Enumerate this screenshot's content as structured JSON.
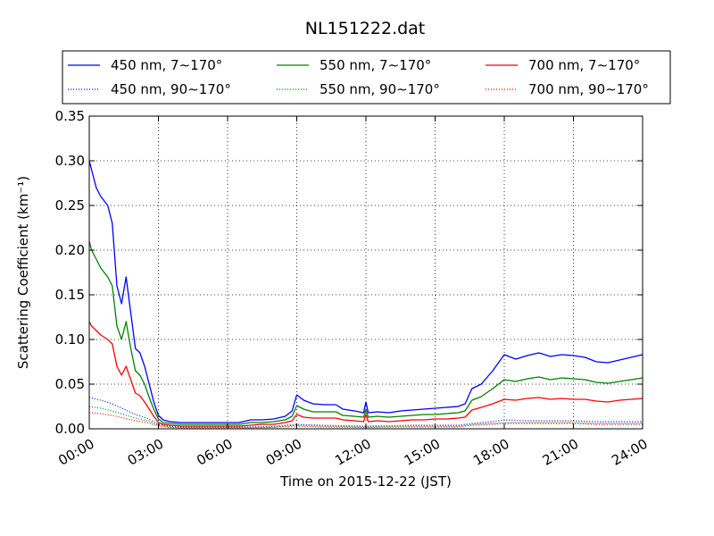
{
  "chart_data": {
    "type": "line",
    "title": "NL151222.dat",
    "xlabel": "Time on 2015-12-22 (JST)",
    "ylabel": "Scattering Coefficient (km⁻¹)",
    "xlim": [
      0,
      24
    ],
    "ylim": [
      0,
      0.35
    ],
    "xticks": [
      0,
      3,
      6,
      9,
      12,
      15,
      18,
      21,
      24
    ],
    "xtick_labels": [
      "00:00",
      "03:00",
      "06:00",
      "09:00",
      "12:00",
      "15:00",
      "18:00",
      "21:00",
      "24:00"
    ],
    "yticks": [
      0,
      0.05,
      0.1,
      0.15,
      0.2,
      0.25,
      0.3,
      0.35
    ],
    "ytick_labels": [
      "0.00",
      "0.05",
      "0.10",
      "0.15",
      "0.20",
      "0.25",
      "0.30",
      "0.35"
    ],
    "grid": true,
    "legend_position": "top, above plot, 3 columns",
    "series": [
      {
        "name": "450 nm, 7∼170°",
        "color": "#0000ff",
        "style": "solid",
        "x": [
          0,
          0.1,
          0.3,
          0.5,
          0.8,
          1.0,
          1.2,
          1.4,
          1.6,
          1.8,
          2.0,
          2.2,
          2.4,
          2.6,
          2.8,
          3.0,
          3.2,
          3.5,
          4,
          5,
          6,
          6.5,
          7,
          7.5,
          8,
          8.5,
          8.8,
          9.0,
          9.3,
          9.7,
          10.2,
          10.7,
          11.0,
          11.5,
          11.9,
          12.0,
          12.1,
          12.5,
          13,
          13.5,
          14,
          14.5,
          15,
          15.5,
          16,
          16.3,
          16.6,
          17.0,
          17.5,
          18.0,
          18.5,
          19.0,
          19.5,
          20,
          20.5,
          21,
          21.5,
          22,
          22.5,
          23,
          23.5,
          24
        ],
        "y": [
          0.3,
          0.29,
          0.27,
          0.26,
          0.25,
          0.23,
          0.16,
          0.14,
          0.17,
          0.13,
          0.09,
          0.085,
          0.07,
          0.05,
          0.03,
          0.015,
          0.01,
          0.008,
          0.007,
          0.007,
          0.007,
          0.007,
          0.01,
          0.01,
          0.011,
          0.014,
          0.02,
          0.038,
          0.032,
          0.028,
          0.027,
          0.027,
          0.022,
          0.02,
          0.018,
          0.03,
          0.018,
          0.019,
          0.018,
          0.02,
          0.021,
          0.022,
          0.023,
          0.024,
          0.025,
          0.028,
          0.045,
          0.05,
          0.065,
          0.083,
          0.078,
          0.082,
          0.085,
          0.081,
          0.083,
          0.082,
          0.08,
          0.075,
          0.074,
          0.077,
          0.08,
          0.083
        ]
      },
      {
        "name": "450 nm, 90∼170°",
        "color": "#0000ff",
        "style": "dotted",
        "x": [
          0,
          0.5,
          1.0,
          1.5,
          2.0,
          2.5,
          3.0,
          3.5,
          4,
          6,
          7,
          8,
          9,
          10,
          12,
          14,
          16,
          16.6,
          17.5,
          18,
          19,
          21,
          22,
          24
        ],
        "y": [
          0.035,
          0.032,
          0.028,
          0.022,
          0.016,
          0.012,
          0.005,
          0.003,
          0.002,
          0.002,
          0.002,
          0.003,
          0.005,
          0.004,
          0.003,
          0.004,
          0.004,
          0.006,
          0.008,
          0.01,
          0.009,
          0.009,
          0.008,
          0.008
        ]
      },
      {
        "name": "550 nm, 7∼170°",
        "color": "#008000",
        "style": "solid",
        "x": [
          0,
          0.1,
          0.3,
          0.5,
          0.8,
          1.0,
          1.2,
          1.4,
          1.6,
          1.8,
          2.0,
          2.2,
          2.4,
          2.6,
          2.8,
          3.0,
          3.2,
          3.5,
          4,
          5,
          6,
          6.5,
          7,
          7.5,
          8,
          8.5,
          8.8,
          9.0,
          9.3,
          9.7,
          10.2,
          10.7,
          11.0,
          11.5,
          11.9,
          12.0,
          12.1,
          12.5,
          13,
          13.5,
          14,
          14.5,
          15,
          15.5,
          16,
          16.3,
          16.6,
          17.0,
          17.5,
          18.0,
          18.5,
          19.0,
          19.5,
          20,
          20.5,
          21,
          21.5,
          22,
          22.5,
          23,
          23.5,
          24
        ],
        "y": [
          0.21,
          0.2,
          0.19,
          0.18,
          0.17,
          0.16,
          0.115,
          0.1,
          0.12,
          0.09,
          0.065,
          0.06,
          0.05,
          0.035,
          0.022,
          0.011,
          0.007,
          0.006,
          0.005,
          0.005,
          0.005,
          0.005,
          0.007,
          0.007,
          0.008,
          0.01,
          0.014,
          0.026,
          0.022,
          0.019,
          0.019,
          0.019,
          0.015,
          0.014,
          0.013,
          0.022,
          0.013,
          0.014,
          0.013,
          0.014,
          0.015,
          0.016,
          0.016,
          0.017,
          0.018,
          0.02,
          0.032,
          0.036,
          0.045,
          0.055,
          0.053,
          0.056,
          0.058,
          0.055,
          0.057,
          0.056,
          0.055,
          0.052,
          0.051,
          0.053,
          0.055,
          0.057
        ]
      },
      {
        "name": "550 nm, 90∼170°",
        "color": "#008000",
        "style": "dotted",
        "x": [
          0,
          0.5,
          1.0,
          1.5,
          2.0,
          2.5,
          3.0,
          3.5,
          4,
          6,
          7,
          8,
          9,
          10,
          12,
          14,
          16,
          16.6,
          17.5,
          18,
          19,
          21,
          22,
          24
        ],
        "y": [
          0.025,
          0.023,
          0.02,
          0.016,
          0.012,
          0.009,
          0.004,
          0.002,
          0.0015,
          0.0015,
          0.0015,
          0.002,
          0.004,
          0.003,
          0.002,
          0.003,
          0.003,
          0.005,
          0.006,
          0.007,
          0.007,
          0.007,
          0.006,
          0.006
        ]
      },
      {
        "name": "700 nm, 7∼170°",
        "color": "#ff0000",
        "style": "solid",
        "x": [
          0,
          0.1,
          0.3,
          0.5,
          0.8,
          1.0,
          1.2,
          1.4,
          1.6,
          1.8,
          2.0,
          2.2,
          2.4,
          2.6,
          2.8,
          3.0,
          3.2,
          3.5,
          4,
          5,
          6,
          6.5,
          7,
          7.5,
          8,
          8.5,
          8.8,
          9.0,
          9.3,
          9.7,
          10.2,
          10.7,
          11.0,
          11.5,
          11.9,
          12.0,
          12.1,
          12.5,
          13,
          13.5,
          14,
          14.5,
          15,
          15.5,
          16,
          16.3,
          16.6,
          17.0,
          17.5,
          18.0,
          18.5,
          19.0,
          19.5,
          20,
          20.5,
          21,
          21.5,
          22,
          22.5,
          23,
          23.5,
          24
        ],
        "y": [
          0.12,
          0.115,
          0.11,
          0.105,
          0.1,
          0.095,
          0.07,
          0.06,
          0.07,
          0.055,
          0.04,
          0.037,
          0.03,
          0.022,
          0.014,
          0.007,
          0.005,
          0.004,
          0.003,
          0.003,
          0.003,
          0.003,
          0.004,
          0.005,
          0.005,
          0.007,
          0.009,
          0.016,
          0.013,
          0.012,
          0.012,
          0.012,
          0.01,
          0.009,
          0.008,
          0.016,
          0.008,
          0.009,
          0.008,
          0.009,
          0.01,
          0.01,
          0.011,
          0.011,
          0.012,
          0.013,
          0.021,
          0.024,
          0.028,
          0.033,
          0.032,
          0.034,
          0.035,
          0.033,
          0.034,
          0.033,
          0.033,
          0.031,
          0.03,
          0.032,
          0.033,
          0.034
        ]
      },
      {
        "name": "700 nm, 90∼170°",
        "color": "#ff0000",
        "style": "dotted",
        "x": [
          0,
          0.5,
          1.0,
          1.5,
          2.0,
          2.5,
          3.0,
          3.5,
          4,
          6,
          7,
          8,
          9,
          10,
          12,
          14,
          16,
          16.6,
          17.5,
          18,
          19,
          21,
          22,
          24
        ],
        "y": [
          0.018,
          0.017,
          0.015,
          0.012,
          0.009,
          0.007,
          0.003,
          0.0015,
          0.001,
          0.001,
          0.001,
          0.0015,
          0.003,
          0.002,
          0.0015,
          0.002,
          0.002,
          0.004,
          0.005,
          0.006,
          0.006,
          0.006,
          0.005,
          0.005
        ]
      }
    ]
  }
}
